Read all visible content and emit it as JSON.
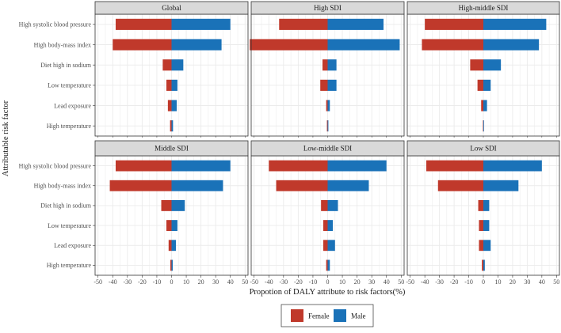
{
  "chart_data": {
    "type": "bar",
    "orientation": "horizontal",
    "layout": "facets-2x3",
    "ylabel": "Attributable risk factor",
    "xlabel": "Propotion of DALY attribute to risk factors(%)",
    "xlim": [
      -52,
      52
    ],
    "xticks": [
      -50,
      -40,
      -30,
      -20,
      -10,
      0,
      10,
      20,
      30,
      40,
      50
    ],
    "grid": true,
    "legend": {
      "position": "bottom",
      "entries": [
        {
          "name": "Female",
          "color": "#c0392b"
        },
        {
          "name": "Male",
          "color": "#1a72b8"
        }
      ]
    },
    "categories": [
      "High systolic blood pressure",
      "High body-mass index",
      "Diet high in sodium",
      "Low temperature",
      "Lead exposure",
      "High temperature"
    ],
    "panels": [
      {
        "title": "Global",
        "female": [
          -38,
          -40,
          -6,
          -3.5,
          -2.5,
          -1
        ],
        "male": [
          40,
          34,
          8,
          4,
          3.5,
          1
        ]
      },
      {
        "title": "High SDI",
        "female": [
          -33,
          -53,
          -3.5,
          -5,
          -1,
          -0.5
        ],
        "male": [
          38,
          49,
          6,
          6,
          1.5,
          0.5
        ]
      },
      {
        "title": "High-middle SDI",
        "female": [
          -40,
          -42,
          -9,
          -4,
          -1.5,
          -0.3
        ],
        "male": [
          43,
          38,
          12,
          5,
          2.5,
          0.3
        ]
      },
      {
        "title": "Middle SDI",
        "female": [
          -38,
          -42,
          -7,
          -3.5,
          -2,
          -0.8
        ],
        "male": [
          40,
          35,
          9,
          4,
          3,
          0.8
        ]
      },
      {
        "title": "Low-middle SDI",
        "female": [
          -40,
          -35,
          -4.5,
          -3,
          -3,
          -1
        ],
        "male": [
          40,
          28,
          7,
          3.5,
          5,
          1.5
        ]
      },
      {
        "title": "Low SDI",
        "female": [
          -39,
          -31,
          -3.5,
          -3,
          -3,
          -1
        ],
        "male": [
          40,
          24,
          4,
          4,
          5,
          1
        ]
      }
    ],
    "colors": {
      "female": "#c0392b",
      "male": "#1a72b8",
      "strip_bg": "#d9d9d9",
      "panel_border": "#333333",
      "grid": "#ebebeb"
    }
  }
}
